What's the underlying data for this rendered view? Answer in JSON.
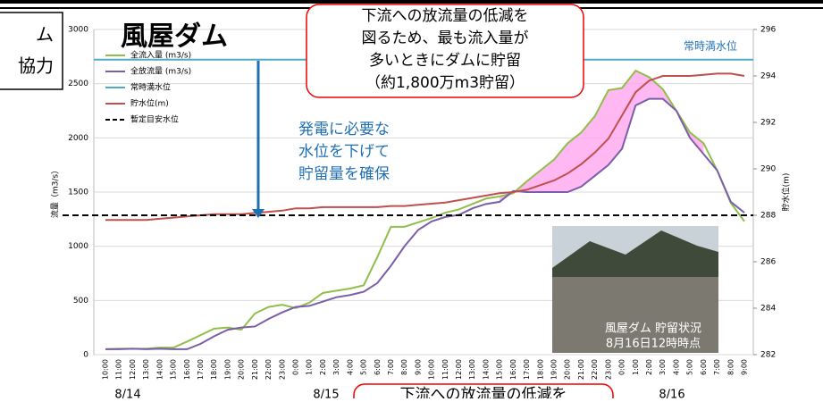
{
  "chart_data": {
    "type": "line",
    "title": "風屋ダム",
    "x": [
      "10:00",
      "11:00",
      "12:00",
      "13:00",
      "14:00",
      "15:00",
      "16:00",
      "17:00",
      "18:00",
      "19:00",
      "20:00",
      "21:00",
      "22:00",
      "23:00",
      "0:00",
      "1:00",
      "2:00",
      "3:00",
      "4:00",
      "5:00",
      "6:00",
      "7:00",
      "8:00",
      "9:00",
      "10:00",
      "11:00",
      "12:00",
      "13:00",
      "14:00",
      "15:00",
      "16:00",
      "17:00",
      "18:00",
      "19:00",
      "20:00",
      "21:00",
      "22:00",
      "23:00",
      "0:00",
      "1:00",
      "2:00",
      "3:00",
      "4:00",
      "5:00",
      "6:00",
      "7:00",
      "8:00",
      "9:00"
    ],
    "dates": [
      "8/14",
      "8/15",
      "8/16"
    ],
    "ylabel": "流量（m3/s）",
    "y2label": "貯水位(m)",
    "ylim": [
      0,
      3000
    ],
    "yticks": [
      0,
      500,
      1000,
      1500,
      2000,
      2500,
      3000
    ],
    "y2lim": [
      282,
      296
    ],
    "y2ticks": [
      282,
      284,
      286,
      288,
      290,
      292,
      294,
      296
    ],
    "series": [
      {
        "name": "全流入量 (m3/s)",
        "color": "#8fbf4a",
        "values": [
          50,
          55,
          55,
          55,
          65,
          65,
          120,
          180,
          240,
          250,
          230,
          380,
          440,
          460,
          430,
          480,
          570,
          590,
          610,
          640,
          900,
          1180,
          1180,
          1220,
          1260,
          1310,
          1340,
          1390,
          1440,
          1460,
          1490,
          1600,
          1700,
          1800,
          1950,
          2050,
          2200,
          2440,
          2460,
          2620,
          2560,
          2450,
          2250,
          2050,
          1950,
          1700,
          1400,
          1230
        ]
      },
      {
        "name": "全放流量 (m3/s)",
        "color": "#7a5ea8",
        "values": [
          50,
          50,
          55,
          50,
          55,
          50,
          50,
          100,
          170,
          230,
          250,
          260,
          330,
          390,
          440,
          450,
          490,
          530,
          550,
          580,
          660,
          820,
          1000,
          1150,
          1230,
          1270,
          1290,
          1350,
          1390,
          1410,
          1510,
          1500,
          1500,
          1500,
          1500,
          1550,
          1650,
          1750,
          1900,
          2300,
          2360,
          2360,
          2250,
          2000,
          1850,
          1700,
          1410,
          1310
        ]
      },
      {
        "name": "常時満水位",
        "color": "#4bacc6",
        "axis": "y2",
        "value": 294.7
      },
      {
        "name": "貯水位(m)",
        "color": "#c0504d",
        "axis": "y2",
        "values": [
          287.8,
          287.8,
          287.8,
          287.8,
          287.85,
          287.9,
          287.95,
          288.0,
          288.05,
          288.05,
          288.05,
          288.1,
          288.15,
          288.2,
          288.3,
          288.3,
          288.35,
          288.35,
          288.35,
          288.35,
          288.35,
          288.4,
          288.4,
          288.45,
          288.5,
          288.55,
          288.65,
          288.75,
          288.85,
          288.95,
          289.0,
          289.1,
          289.3,
          289.5,
          289.8,
          290.2,
          290.7,
          291.3,
          292.3,
          293.3,
          293.8,
          294.0,
          294.0,
          294.0,
          294.05,
          294.1,
          294.1,
          294.0
        ]
      },
      {
        "name": "暫定目安水位",
        "color": "#000000",
        "axis": "y2",
        "value": 288,
        "dash": true
      }
    ],
    "annotations": {
      "callout_top": [
        "下流への放流量の低減を",
        "図るため、最も流入量が",
        "多いときにダムに貯留",
        "（約1,800万m3貯留）"
      ],
      "blue_note": [
        "発電に必要な",
        "水位を下げて",
        "貯留量を確保"
      ],
      "full_level": "常時満水位",
      "photo_caption": [
        "風屋ダム 貯留状況",
        "8月16日12時時点"
      ],
      "callout_bottom": "下流への放流量の低減を",
      "side_box": [
        "ム",
        "協力"
      ]
    }
  }
}
